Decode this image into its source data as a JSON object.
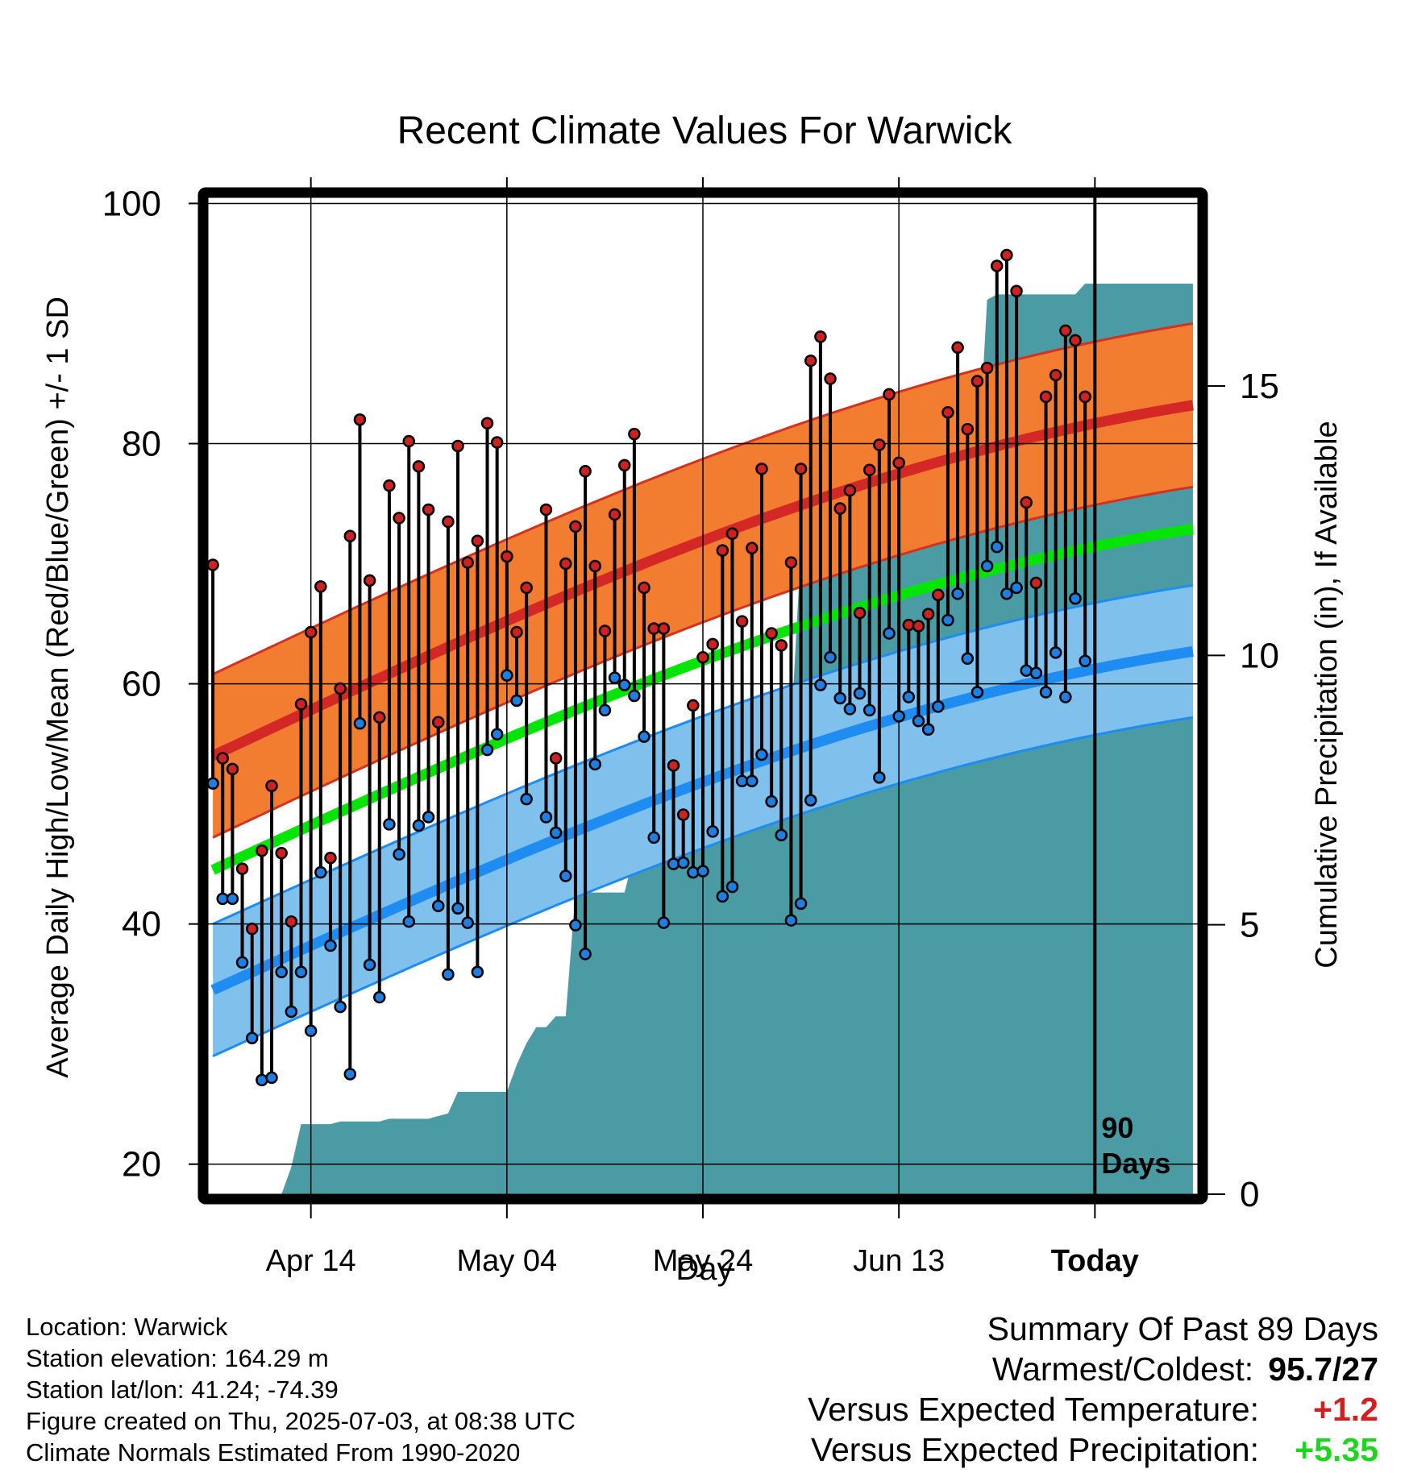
{
  "chart_data": {
    "type": "line",
    "title": "Recent Climate Values For Warwick",
    "xlabel": "Day",
    "ylabel": "Average Daily High/Low/Mean (Red/Blue/Green) +/- 1 SD",
    "y2label": "Cumulative Precipitation (in), If Available",
    "ylim": [
      17.5,
      100.5
    ],
    "y2lim": [
      0,
      18.5
    ],
    "xlim": [
      -0.5,
      100.5
    ],
    "x_tick_labels": [
      "Apr 14",
      "May 04",
      "May 24",
      "Jun 13",
      "Today"
    ],
    "x_tick_positions": [
      10,
      30,
      50,
      70,
      90
    ],
    "y_ticks": [
      20,
      40,
      60,
      80,
      100
    ],
    "y2_ticks": [
      0,
      5,
      10,
      15
    ],
    "today_index": 90,
    "today_label": [
      "90",
      "Days"
    ],
    "normal_high": {
      "start": 54,
      "end": 83.2
    },
    "normal_high_sd": 6.8,
    "normal_mean": {
      "start": 44.5,
      "end": 72.9
    },
    "normal_low": {
      "start": 34.5,
      "end": 62.7
    },
    "normal_low_sd": 5.5,
    "daily_high": [
      69.9,
      53.8,
      52.9,
      44.6,
      39.6,
      46.1,
      51.5,
      45.9,
      40.2,
      58.3,
      64.3,
      68.1,
      45.5,
      59.6,
      72.3,
      82.0,
      68.6,
      57.2,
      76.5,
      73.8,
      80.2,
      78.1,
      74.5,
      56.8,
      73.5,
      79.8,
      70.1,
      71.9,
      81.7,
      80.1,
      70.6,
      64.3,
      68.0,
      null,
      74.5,
      53.8,
      70.0,
      73.1,
      77.7,
      69.8,
      64.4,
      74.1,
      78.2,
      80.8,
      68.0,
      64.6,
      64.6,
      53.2,
      49.1,
      58.2,
      62.2,
      63.3,
      71.1,
      72.5,
      65.2,
      71.3,
      77.9,
      64.2,
      63.2,
      70.1,
      77.9,
      86.9,
      88.9,
      85.4,
      74.6,
      76.1,
      65.9,
      77.8,
      79.9,
      84.1,
      78.4,
      64.9,
      64.8,
      65.8,
      67.4,
      82.6,
      88.0,
      81.2,
      85.2,
      86.3,
      94.8,
      95.7,
      92.7,
      75.1,
      68.4,
      83.9,
      85.7,
      89.4,
      88.6,
      83.9
    ],
    "daily_low": [
      51.7,
      42.1,
      42.1,
      36.8,
      30.5,
      27.0,
      27.2,
      36.0,
      32.7,
      36.0,
      31.1,
      44.3,
      38.2,
      33.1,
      27.5,
      56.7,
      36.6,
      33.9,
      48.3,
      45.8,
      40.2,
      48.2,
      48.9,
      41.5,
      35.8,
      41.3,
      40.1,
      36.0,
      54.5,
      55.8,
      60.7,
      58.6,
      50.4,
      null,
      48.9,
      47.6,
      44.0,
      39.9,
      37.5,
      53.3,
      57.8,
      60.5,
      59.9,
      59.0,
      55.6,
      47.2,
      40.1,
      45.0,
      45.1,
      44.3,
      44.4,
      47.7,
      42.3,
      43.1,
      51.9,
      51.9,
      54.1,
      50.2,
      47.4,
      40.3,
      41.7,
      50.3,
      59.9,
      62.2,
      58.8,
      57.9,
      59.2,
      57.8,
      52.2,
      64.2,
      57.3,
      58.9,
      56.9,
      56.2,
      58.1,
      65.3,
      67.5,
      62.1,
      59.3,
      69.8,
      71.4,
      67.5,
      68.0,
      61.1,
      60.9,
      59.3,
      62.6,
      58.9,
      67.1,
      61.9
    ],
    "precip_cumulative": [
      0,
      0,
      0,
      0,
      0,
      0,
      0,
      0,
      0.5,
      1.3,
      1.3,
      1.3,
      1.3,
      1.35,
      1.35,
      1.35,
      1.35,
      1.35,
      1.4,
      1.4,
      1.4,
      1.4,
      1.4,
      1.45,
      1.5,
      1.9,
      1.9,
      1.9,
      1.9,
      1.9,
      1.9,
      2.4,
      2.8,
      3.1,
      3.1,
      3.3,
      3.3,
      5.6,
      5.6,
      5.6,
      5.6,
      5.6,
      5.6,
      6.3,
      6.3,
      6.4,
      6.4,
      6.4,
      6.4,
      6.9,
      7.1,
      8.1,
      8.3,
      8.3,
      8.3,
      8.3,
      8.3,
      8.5,
      8.6,
      8.6,
      12.0,
      12.1,
      12.1,
      12.1,
      12.1,
      12.1,
      12.1,
      12.1,
      12.4,
      12.7,
      12.7,
      12.9,
      13.1,
      13.1,
      13.2,
      13.2,
      13.2,
      13.2,
      13.3,
      16.6,
      16.7,
      16.7,
      16.7,
      16.7,
      16.7,
      16.7,
      16.7,
      16.7,
      16.7,
      16.9,
      16.9,
      16.9,
      16.9,
      16.9,
      16.9,
      16.9,
      16.9,
      16.9,
      16.9,
      16.9,
      16.9
    ],
    "colors": {
      "high_band": "#f27c30",
      "high_edge": "#d23220",
      "high_line": "#d42827",
      "mean_line": "#05e505",
      "low_band": "#80c0ec",
      "low_edge": "#1e8cf0",
      "low_line": "#1e8cf0",
      "precip": "#4a9ba3",
      "high_dot": "#cc2222",
      "low_dot": "#1f7fe0",
      "warm_text": "#d22020",
      "wet_text": "#1fd61f"
    }
  },
  "info": {
    "location": "Location: Warwick",
    "elevation": "Station elevation: 164.29 m",
    "latlon": "Station lat/lon: 41.24; -74.39",
    "created": "Figure created on Thu, 2025-07-03, at 08:38 UTC",
    "normals": "Climate Normals Estimated From 1990-2020"
  },
  "summary": {
    "title": "Summary Of Past 89 Days",
    "warm_cold_label": "Warmest/Coldest:",
    "warm_cold_value": "95.7/27",
    "temp_label": "Versus Expected Temperature:",
    "temp_value": "+1.2",
    "precip_label": "Versus Expected Precipitation:",
    "precip_value": "+5.35"
  }
}
